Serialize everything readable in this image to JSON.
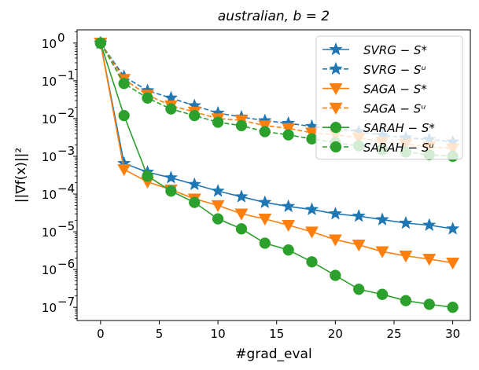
{
  "chart_data": {
    "type": "line",
    "title": "australian, b = 2",
    "xlabel": "#grad_eval",
    "ylabel": "||∇f(x)||²",
    "yscale": "log",
    "xlim": [
      -2,
      31.5
    ],
    "ylim_log10": [
      -7.35,
      0.35
    ],
    "xticks": [
      0,
      5,
      10,
      15,
      20,
      25,
      30
    ],
    "yticks_exp": [
      0,
      -1,
      -2,
      -3,
      -4,
      -5,
      -6,
      -7
    ],
    "legend_loc": "upper right",
    "x": [
      0,
      2,
      4,
      6,
      8,
      10,
      12,
      14,
      16,
      18,
      20,
      22,
      24,
      26,
      28,
      30
    ],
    "series": [
      {
        "name": "SVRG − S*",
        "color": "#1f77b4",
        "linestyle": "solid",
        "marker": "star",
        "values": [
          1.0,
          0.00065,
          0.00038,
          0.00027,
          0.00018,
          0.00012,
          8.5e-05,
          6e-05,
          4.7e-05,
          3.9e-05,
          3e-05,
          2.6e-05,
          2.1e-05,
          1.7e-05,
          1.5e-05,
          1.2e-05
        ]
      },
      {
        "name": "SVRG − Sᵘ",
        "color": "#1f77b4",
        "linestyle": "dashed",
        "marker": "star",
        "values": [
          1.0,
          0.13,
          0.055,
          0.035,
          0.022,
          0.014,
          0.011,
          0.0088,
          0.0075,
          0.0062,
          0.0055,
          0.0045,
          0.0036,
          0.0031,
          0.0028,
          0.0024
        ]
      },
      {
        "name": "SAGA − S*",
        "color": "#ff7f0e",
        "linestyle": "solid",
        "marker": "triangle-down",
        "values": [
          1.0,
          0.00045,
          0.00021,
          0.00013,
          7.5e-05,
          5e-05,
          3e-05,
          2.2e-05,
          1.5e-05,
          1e-05,
          6.2e-06,
          4.5e-06,
          3e-06,
          2.3e-06,
          1.9e-06,
          1.5e-06
        ]
      },
      {
        "name": "SAGA − Sᵘ",
        "color": "#ff7f0e",
        "linestyle": "dashed",
        "marker": "triangle-down",
        "values": [
          1.0,
          0.11,
          0.042,
          0.022,
          0.015,
          0.01,
          0.009,
          0.0065,
          0.0055,
          0.0042,
          0.0037,
          0.0031,
          0.0024,
          0.0021,
          0.0018,
          0.0016
        ]
      },
      {
        "name": "SARAH − S*",
        "color": "#2ca02c",
        "linestyle": "solid",
        "marker": "circle",
        "values": [
          1.0,
          0.012,
          0.0003,
          0.00012,
          6e-05,
          2.2e-05,
          1.2e-05,
          5e-06,
          3.3e-06,
          1.6e-06,
          7e-07,
          3e-07,
          2.2e-07,
          1.5e-07,
          1.2e-07,
          1e-07
        ]
      },
      {
        "name": "SARAH − Sᵘ",
        "color": "#2ca02c",
        "linestyle": "dashed",
        "marker": "circle",
        "values": [
          1.0,
          0.085,
          0.035,
          0.018,
          0.012,
          0.008,
          0.0065,
          0.0045,
          0.0037,
          0.0029,
          0.0023,
          0.0019,
          0.0015,
          0.0013,
          0.0011,
          0.001
        ]
      }
    ]
  }
}
